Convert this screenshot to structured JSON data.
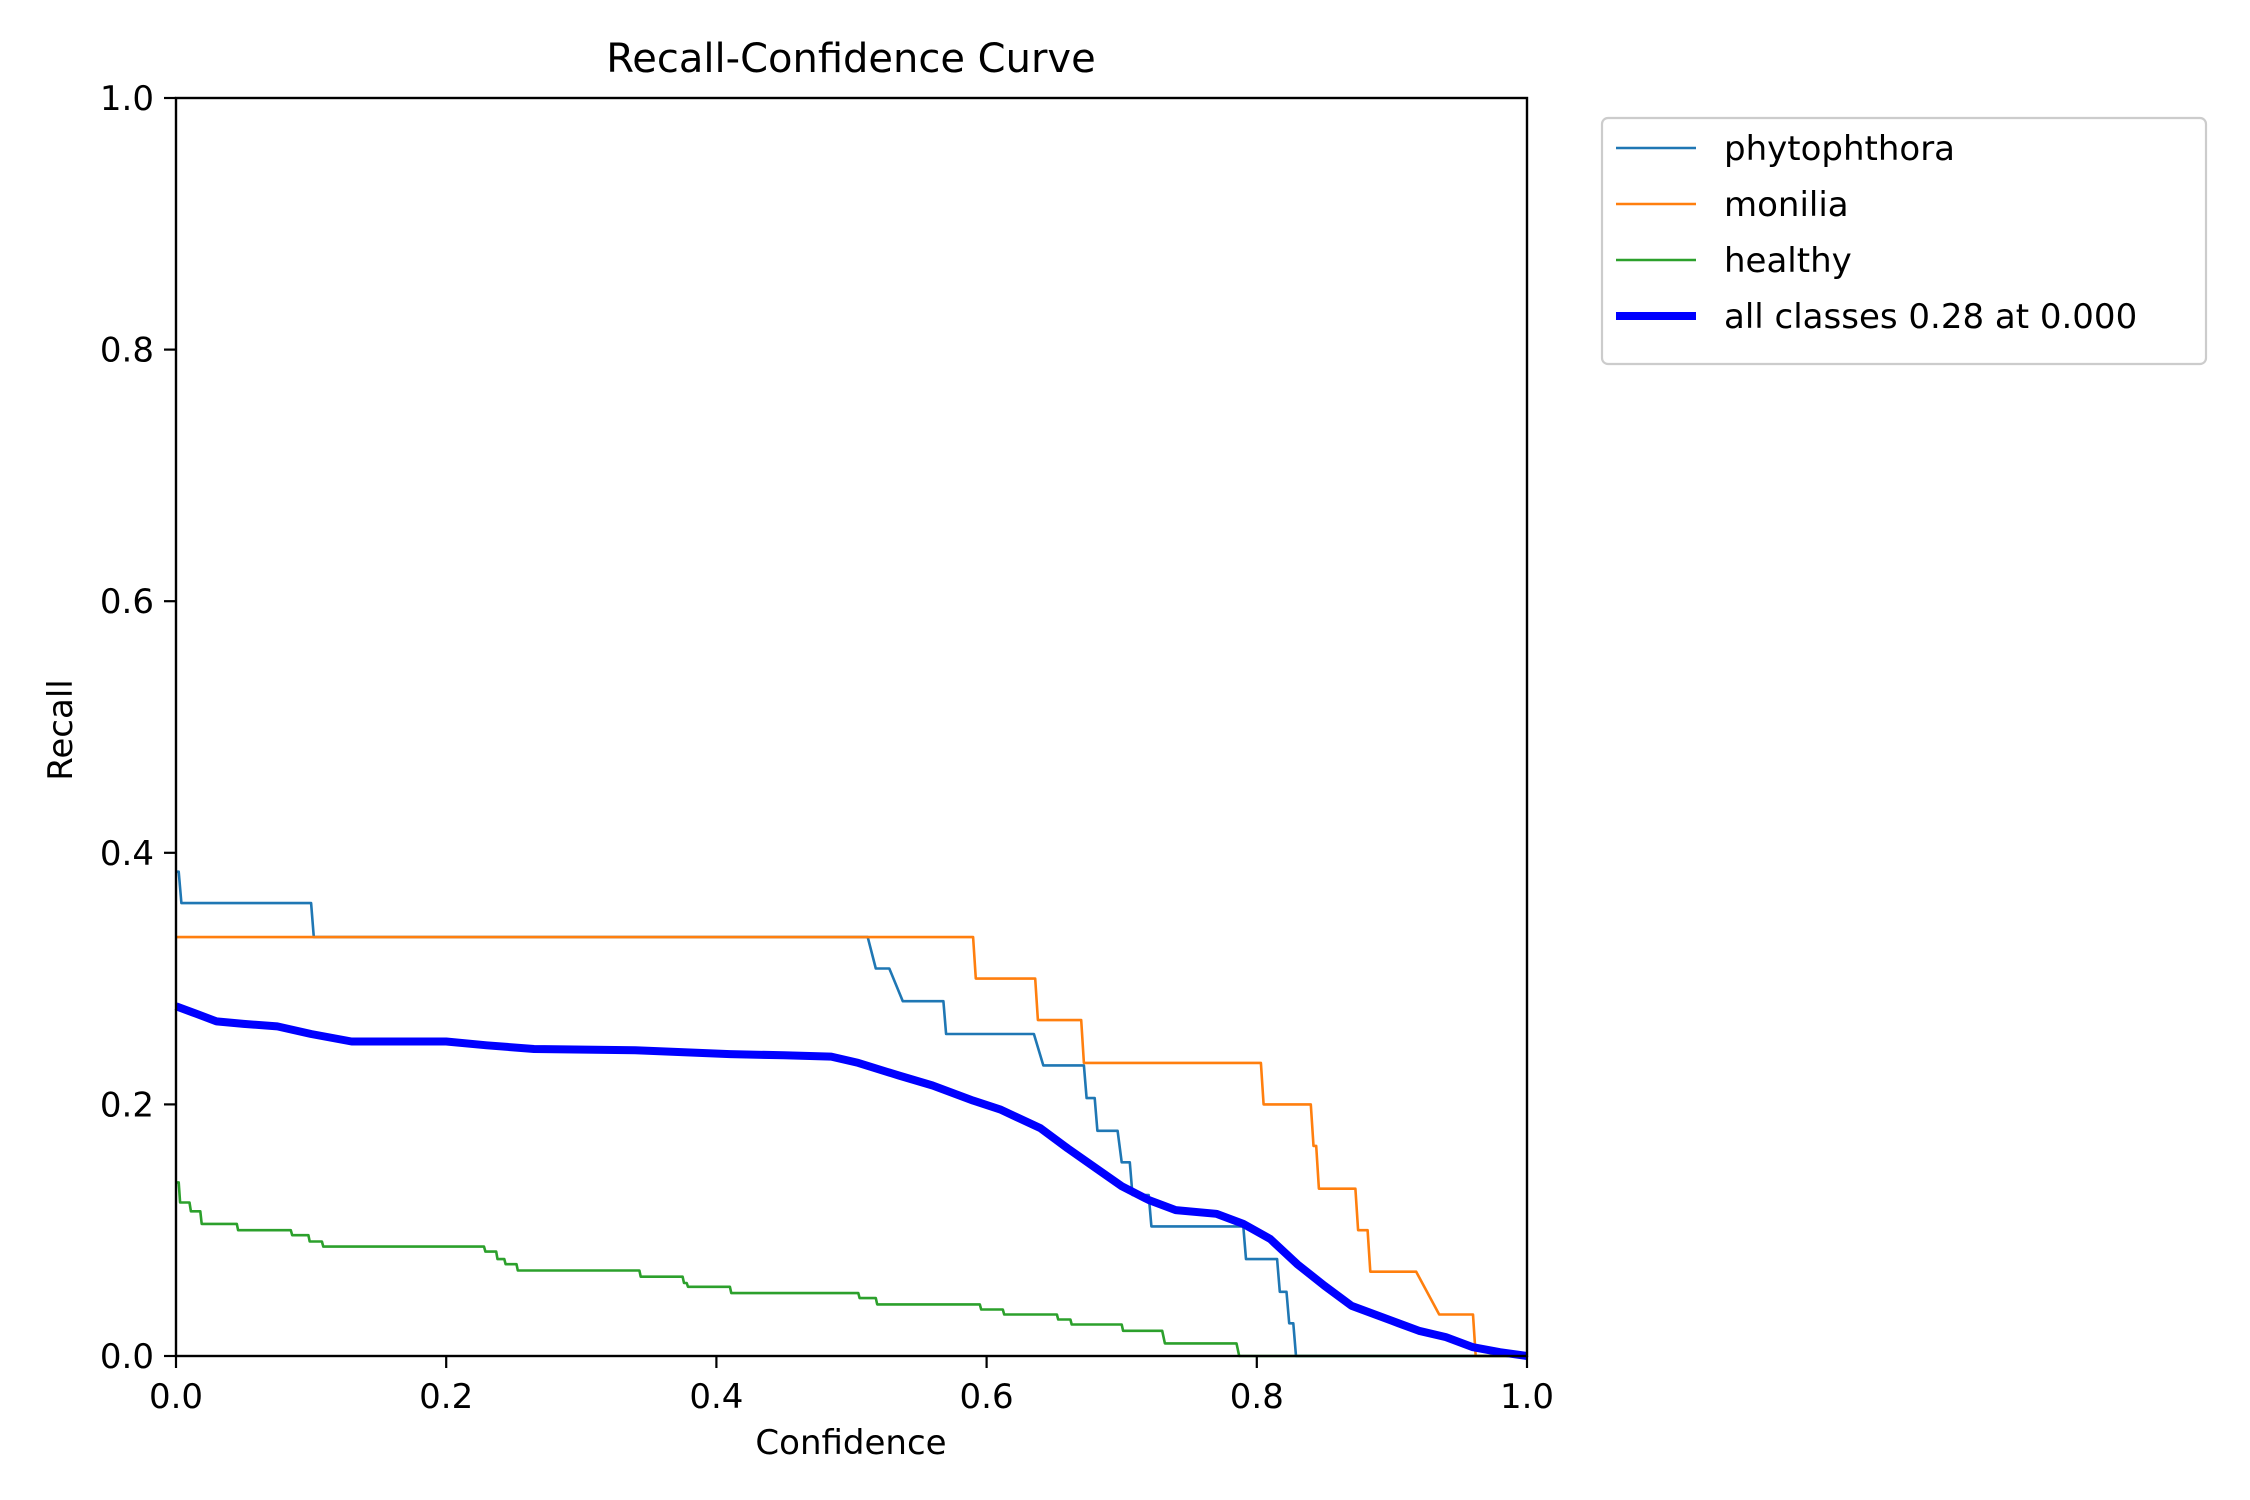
{
  "chart_data": {
    "type": "line",
    "title": "Recall-Confidence Curve",
    "xlabel": "Confidence",
    "ylabel": "Recall",
    "xlim": [
      0.0,
      1.0
    ],
    "ylim": [
      0.0,
      1.0
    ],
    "xticks": [
      0.0,
      0.2,
      0.4,
      0.6,
      0.8,
      1.0
    ],
    "yticks": [
      0.0,
      0.2,
      0.4,
      0.6,
      0.8,
      1.0
    ],
    "xtick_labels": [
      "0.0",
      "0.2",
      "0.4",
      "0.6",
      "0.8",
      "1.0"
    ],
    "ytick_labels": [
      "0.0",
      "0.2",
      "0.4",
      "0.6",
      "0.8",
      "1.0"
    ],
    "grid": false,
    "legend_position": "outside-top-right",
    "series": [
      {
        "name": "phytophthora",
        "color": "#1f77b4",
        "style": "thin",
        "points": [
          [
            0.0,
            0.385
          ],
          [
            0.002,
            0.385
          ],
          [
            0.004,
            0.36
          ],
          [
            0.1,
            0.36
          ],
          [
            0.102,
            0.333
          ],
          [
            0.512,
            0.333
          ],
          [
            0.518,
            0.308
          ],
          [
            0.528,
            0.308
          ],
          [
            0.538,
            0.282
          ],
          [
            0.568,
            0.282
          ],
          [
            0.57,
            0.256
          ],
          [
            0.635,
            0.256
          ],
          [
            0.642,
            0.231
          ],
          [
            0.672,
            0.231
          ],
          [
            0.674,
            0.205
          ],
          [
            0.68,
            0.205
          ],
          [
            0.682,
            0.179
          ],
          [
            0.697,
            0.179
          ],
          [
            0.7,
            0.154
          ],
          [
            0.706,
            0.154
          ],
          [
            0.708,
            0.128
          ],
          [
            0.72,
            0.128
          ],
          [
            0.722,
            0.103
          ],
          [
            0.79,
            0.103
          ],
          [
            0.792,
            0.077
          ],
          [
            0.815,
            0.077
          ],
          [
            0.817,
            0.051
          ],
          [
            0.822,
            0.051
          ],
          [
            0.824,
            0.026
          ],
          [
            0.827,
            0.026
          ],
          [
            0.829,
            0.0
          ],
          [
            1.0,
            0.0
          ]
        ]
      },
      {
        "name": "monilia",
        "color": "#ff7f0e",
        "style": "thin",
        "points": [
          [
            0.0,
            0.333
          ],
          [
            0.59,
            0.333
          ],
          [
            0.592,
            0.3
          ],
          [
            0.636,
            0.3
          ],
          [
            0.638,
            0.267
          ],
          [
            0.67,
            0.267
          ],
          [
            0.672,
            0.233
          ],
          [
            0.803,
            0.233
          ],
          [
            0.805,
            0.2
          ],
          [
            0.84,
            0.2
          ],
          [
            0.842,
            0.167
          ],
          [
            0.844,
            0.167
          ],
          [
            0.846,
            0.133
          ],
          [
            0.873,
            0.133
          ],
          [
            0.875,
            0.1
          ],
          [
            0.882,
            0.1
          ],
          [
            0.884,
            0.067
          ],
          [
            0.918,
            0.067
          ],
          [
            0.935,
            0.033
          ],
          [
            0.96,
            0.033
          ],
          [
            0.962,
            0.0
          ],
          [
            1.0,
            0.0
          ]
        ]
      },
      {
        "name": "healthy",
        "color": "#2ca02c",
        "style": "thin",
        "points": [
          [
            0.0,
            0.138
          ],
          [
            0.002,
            0.138
          ],
          [
            0.003,
            0.122
          ],
          [
            0.01,
            0.122
          ],
          [
            0.011,
            0.115
          ],
          [
            0.018,
            0.115
          ],
          [
            0.019,
            0.105
          ],
          [
            0.045,
            0.105
          ],
          [
            0.046,
            0.1
          ],
          [
            0.085,
            0.1
          ],
          [
            0.086,
            0.096
          ],
          [
            0.098,
            0.096
          ],
          [
            0.099,
            0.091
          ],
          [
            0.108,
            0.091
          ],
          [
            0.109,
            0.087
          ],
          [
            0.228,
            0.087
          ],
          [
            0.229,
            0.083
          ],
          [
            0.237,
            0.083
          ],
          [
            0.238,
            0.077
          ],
          [
            0.243,
            0.077
          ],
          [
            0.244,
            0.073
          ],
          [
            0.252,
            0.073
          ],
          [
            0.253,
            0.068
          ],
          [
            0.343,
            0.068
          ],
          [
            0.344,
            0.063
          ],
          [
            0.375,
            0.063
          ],
          [
            0.376,
            0.058
          ],
          [
            0.378,
            0.058
          ],
          [
            0.379,
            0.055
          ],
          [
            0.41,
            0.055
          ],
          [
            0.411,
            0.05
          ],
          [
            0.505,
            0.05
          ],
          [
            0.506,
            0.046
          ],
          [
            0.518,
            0.046
          ],
          [
            0.519,
            0.041
          ],
          [
            0.595,
            0.041
          ],
          [
            0.596,
            0.037
          ],
          [
            0.612,
            0.037
          ],
          [
            0.613,
            0.033
          ],
          [
            0.652,
            0.033
          ],
          [
            0.653,
            0.029
          ],
          [
            0.662,
            0.029
          ],
          [
            0.663,
            0.025
          ],
          [
            0.7,
            0.025
          ],
          [
            0.701,
            0.02
          ],
          [
            0.73,
            0.02
          ],
          [
            0.732,
            0.01
          ],
          [
            0.785,
            0.01
          ],
          [
            0.787,
            0.0
          ],
          [
            1.0,
            0.0
          ]
        ]
      },
      {
        "name": "all classes 0.28 at 0.000",
        "color": "#0000ff",
        "style": "thick",
        "points": [
          [
            0.0,
            0.278
          ],
          [
            0.015,
            0.272
          ],
          [
            0.03,
            0.266
          ],
          [
            0.05,
            0.264
          ],
          [
            0.075,
            0.262
          ],
          [
            0.1,
            0.256
          ],
          [
            0.13,
            0.25
          ],
          [
            0.2,
            0.25
          ],
          [
            0.23,
            0.247
          ],
          [
            0.265,
            0.244
          ],
          [
            0.34,
            0.243
          ],
          [
            0.41,
            0.24
          ],
          [
            0.45,
            0.239
          ],
          [
            0.485,
            0.238
          ],
          [
            0.505,
            0.233
          ],
          [
            0.535,
            0.223
          ],
          [
            0.56,
            0.215
          ],
          [
            0.59,
            0.203
          ],
          [
            0.61,
            0.196
          ],
          [
            0.64,
            0.181
          ],
          [
            0.66,
            0.165
          ],
          [
            0.68,
            0.15
          ],
          [
            0.7,
            0.135
          ],
          [
            0.72,
            0.124
          ],
          [
            0.74,
            0.116
          ],
          [
            0.77,
            0.113
          ],
          [
            0.79,
            0.105
          ],
          [
            0.81,
            0.093
          ],
          [
            0.83,
            0.073
          ],
          [
            0.85,
            0.056
          ],
          [
            0.87,
            0.04
          ],
          [
            0.9,
            0.028
          ],
          [
            0.92,
            0.02
          ],
          [
            0.94,
            0.015
          ],
          [
            0.96,
            0.007
          ],
          [
            0.98,
            0.003
          ],
          [
            1.0,
            0.0
          ]
        ]
      }
    ]
  }
}
